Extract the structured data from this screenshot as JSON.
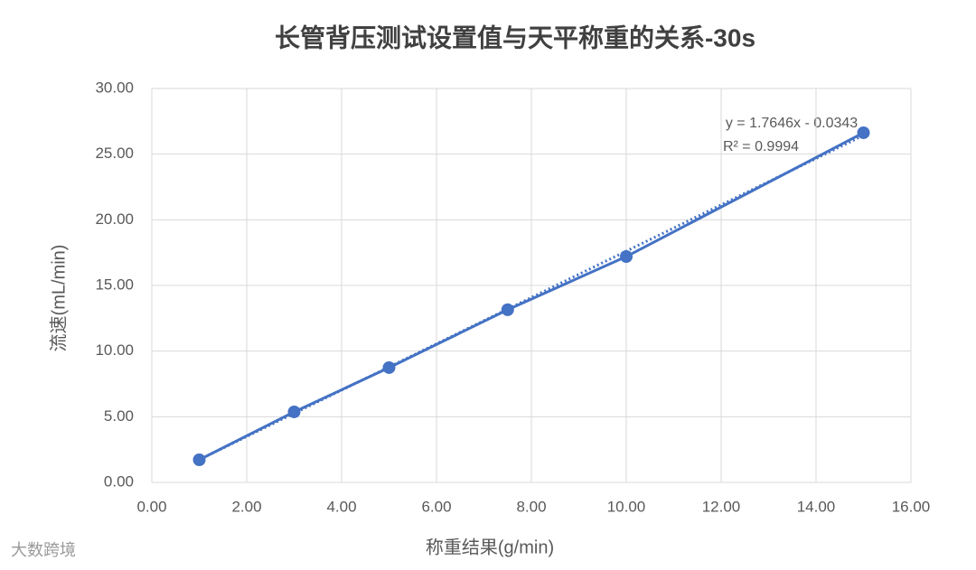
{
  "chart_data": {
    "type": "scatter-line",
    "title": "长管背压测试设置值与天平称重的关系-30s",
    "x_label": "称重结果(g/min)",
    "y_label": "流速(mL/min)",
    "x": [
      1,
      3,
      5,
      7.5,
      10,
      15
    ],
    "values": [
      1.72,
      5.37,
      8.74,
      13.15,
      17.2,
      26.63
    ],
    "color": "#4472c4",
    "xlim": [
      0,
      16
    ],
    "xticks": [
      {
        "value": 0,
        "label": "0.00"
      },
      {
        "value": 2,
        "label": "2.00"
      },
      {
        "value": 4,
        "label": "4.00"
      },
      {
        "value": 6,
        "label": "6.00"
      },
      {
        "value": 8,
        "label": "8.00"
      },
      {
        "value": 10,
        "label": "10.00"
      },
      {
        "value": 12,
        "label": "12.00"
      },
      {
        "value": 14,
        "label": "14.00"
      },
      {
        "value": 16,
        "label": "16.00"
      }
    ],
    "ylim": [
      0,
      30
    ],
    "yticks": [
      {
        "value": 0,
        "label": "0.00"
      },
      {
        "value": 5,
        "label": "5.00"
      },
      {
        "value": 10,
        "label": "10.00"
      },
      {
        "value": 15,
        "label": "15.00"
      },
      {
        "value": 20,
        "label": "20.00"
      },
      {
        "value": 25,
        "label": "25.00"
      },
      {
        "value": 30,
        "label": "30.00"
      }
    ],
    "grid": true,
    "trendline": {
      "slope": 1.7646,
      "intercept": -0.0343,
      "equation": "y = 1.7646x - 0.0343",
      "r2": "R² = 0.9994"
    },
    "watermark": "大数跨境"
  }
}
